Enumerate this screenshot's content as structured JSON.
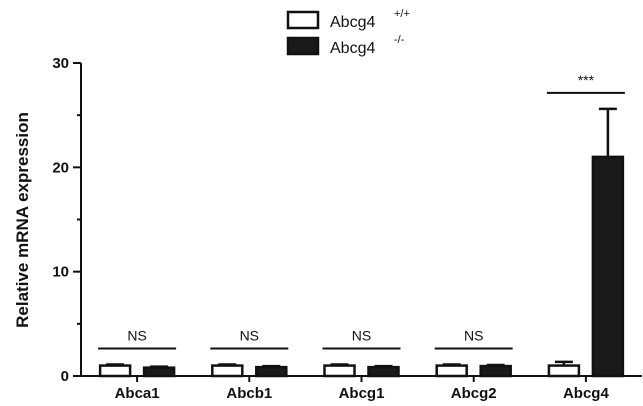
{
  "chart_data": {
    "type": "bar",
    "ylabel": "Relative mRNA expression",
    "ylim": [
      0,
      30
    ],
    "yticks": [
      0,
      10,
      20,
      30
    ],
    "categories": [
      "Abca1",
      "Abcb1",
      "Abcg1",
      "Abcg2",
      "Abcg4"
    ],
    "series": [
      {
        "name": "Abcg4",
        "superscript": "+/+",
        "fill": "#ffffff",
        "stroke": "#111111",
        "values": [
          1.0,
          1.0,
          1.0,
          1.0,
          1.0
        ],
        "errors": [
          0.1,
          0.1,
          0.1,
          0.1,
          0.35
        ]
      },
      {
        "name": "Abcg4",
        "superscript": "-/-",
        "fill": "#1a1a1a",
        "stroke": "#111111",
        "values": [
          0.8,
          0.85,
          0.85,
          0.95,
          21.0
        ],
        "errors": [
          0.1,
          0.1,
          0.1,
          0.1,
          4.6
        ]
      }
    ],
    "significance": [
      "NS",
      "NS",
      "NS",
      "NS",
      "***"
    ],
    "legend_position": "top-center",
    "grid": false
  }
}
